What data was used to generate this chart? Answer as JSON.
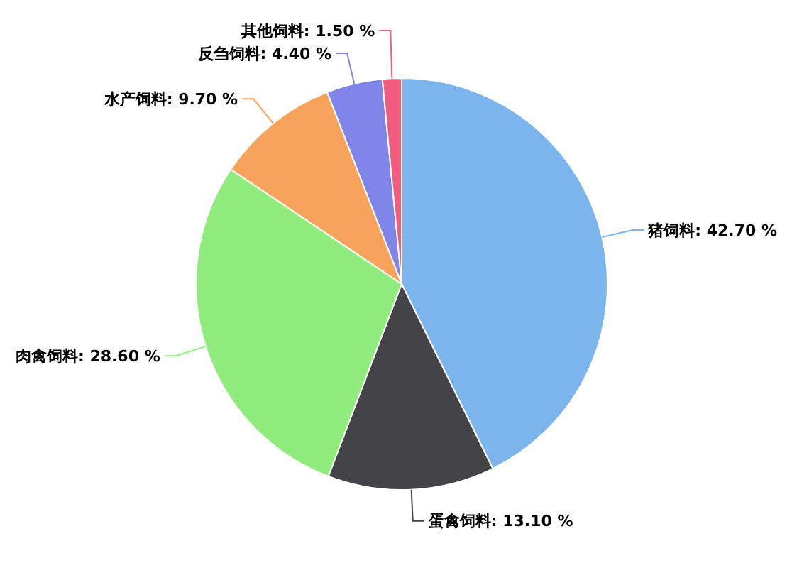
{
  "chart_data": {
    "type": "pie",
    "categories": [
      "猪饲料",
      "蛋禽饲料",
      "肉禽饲料",
      "水产饲料",
      "反刍饲料",
      "其他饲料"
    ],
    "values": [
      42.7,
      13.1,
      28.6,
      9.7,
      4.4,
      1.5
    ],
    "colors": [
      "#7cb5ec",
      "#434348",
      "#90ed7d",
      "#f7a35c",
      "#8085e9",
      "#f15c80"
    ],
    "value_labels": [
      ": 42.70 %",
      ": 13.10 %",
      ": 28.60 %",
      ": 9.70 %",
      ": 4.40 %",
      ": 1.50 %"
    ]
  }
}
